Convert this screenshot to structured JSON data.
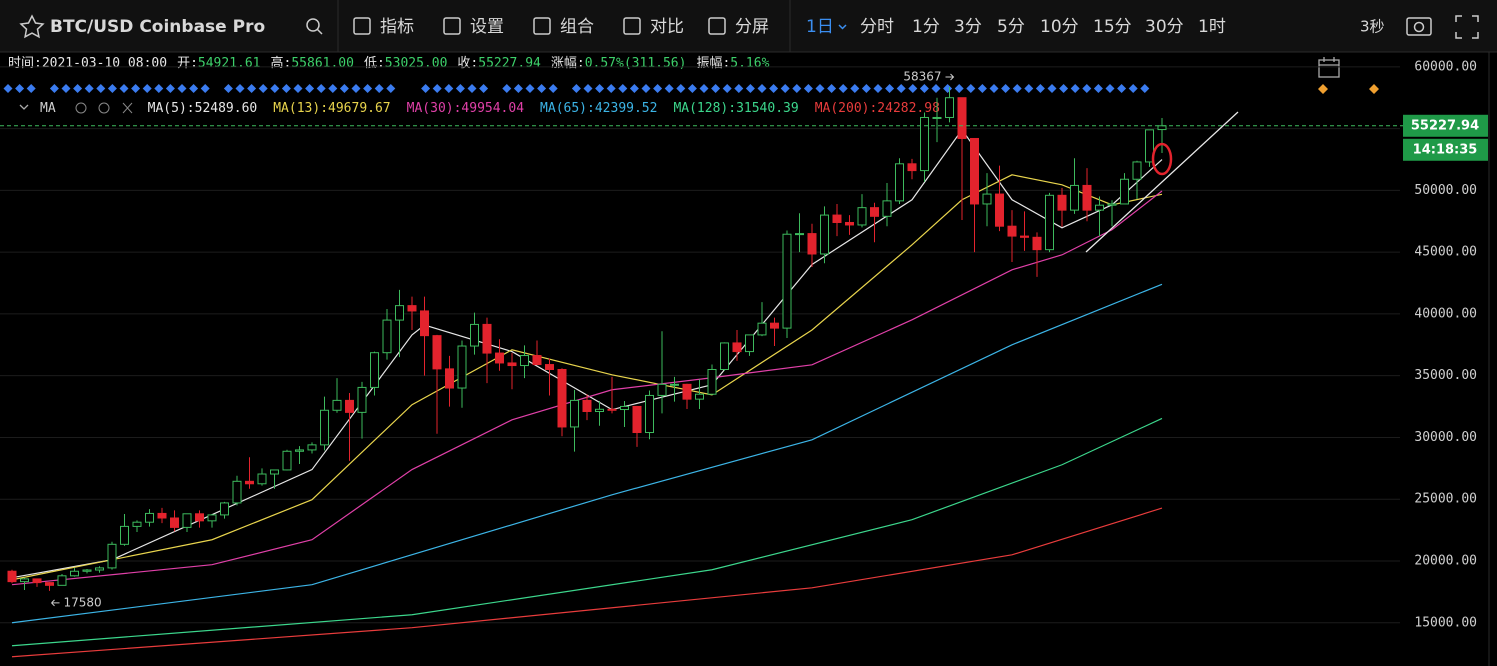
{
  "toolbar": {
    "title": "BTC/USD Coinbase Pro",
    "tools": [
      "指标",
      "设置",
      "组合",
      "对比",
      "分屏"
    ],
    "intervals": [
      "1日",
      "分时",
      "1分",
      "3分",
      "5分",
      "10分",
      "15分",
      "30分",
      "1时"
    ],
    "refresh": "3秒"
  },
  "info": [
    {
      "label": "时间:",
      "value": "2021-03-10 08:00"
    },
    {
      "label": "开:",
      "value": "54921.61"
    },
    {
      "label": "高:",
      "value": "55861.00"
    },
    {
      "label": "低:",
      "value": "53025.00"
    },
    {
      "label": "收:",
      "value": "55227.94"
    },
    {
      "label": "涨幅:",
      "value": "0.57%(311.56)"
    },
    {
      "label": "振幅:",
      "value": "5.16%"
    }
  ],
  "chart_data": {
    "type": "candlestick",
    "indicator": "MA",
    "up_color": "#3dba5d",
    "down_color": "#e3232d",
    "open": [
      19170,
      18330,
      18550,
      18250,
      18030,
      18800,
      19170,
      19270,
      19440,
      21350,
      22800,
      23140,
      23850,
      23480,
      22720,
      23820,
      23250,
      23730,
      24700,
      26450,
      26250,
      27040,
      27370,
      28880,
      28990,
      29400,
      32200,
      33000,
      32030,
      34050,
      36860,
      39500,
      40670,
      40240,
      38240,
      35550,
      34000,
      37400,
      39150,
      36830,
      36030,
      35820,
      36630,
      35900,
      35500,
      30850,
      33000,
      32100,
      32280,
      32260,
      32510,
      30400,
      33400,
      34300,
      34300,
      33100,
      33500,
      35500,
      37650,
      36950,
      38300,
      39250,
      38850,
      46450,
      46500,
      44850,
      48000,
      47400,
      47200,
      48600,
      47900,
      49150,
      52150,
      51600,
      55900,
      55900,
      57500,
      54200,
      48900,
      49700,
      47100,
      46300,
      46200,
      45200,
      49600,
      48400,
      50400,
      48400,
      48800,
      48900,
      50900,
      52300,
      54921.61
    ],
    "high": [
      19290,
      18640,
      18560,
      18290,
      18950,
      19420,
      19350,
      19570,
      21560,
      23800,
      23290,
      24200,
      24300,
      24100,
      23840,
      24100,
      23780,
      24790,
      26900,
      28400,
      27500,
      27400,
      29000,
      29300,
      29600,
      33300,
      34800,
      33600,
      34500,
      36950,
      40400,
      41950,
      41400,
      41400,
      38300,
      36600,
      37850,
      40100,
      39700,
      37950,
      36850,
      37450,
      37850,
      36400,
      35600,
      33850,
      33500,
      32950,
      34900,
      32950,
      32560,
      33800,
      38600,
      34900,
      34350,
      34700,
      35900,
      37700,
      38700,
      38300,
      40950,
      39700,
      46750,
      48150,
      47300,
      48700,
      48900,
      48000,
      49700,
      49000,
      50600,
      52600,
      52550,
      56300,
      57500,
      58367,
      57500,
      54200,
      51400,
      52000,
      48400,
      48300,
      46600,
      49800,
      50200,
      52600,
      51800,
      49500,
      49200,
      51400,
      52400,
      54900,
      55861
    ],
    "low": [
      18200,
      17650,
      17900,
      17580,
      18020,
      18730,
      19000,
      19050,
      19300,
      21230,
      22350,
      22780,
      23060,
      22400,
      22350,
      22700,
      22700,
      23430,
      24500,
      25850,
      26100,
      25850,
      27320,
      27850,
      28700,
      28950,
      32000,
      28100,
      29900,
      33400,
      36300,
      36500,
      38700,
      35000,
      30300,
      32500,
      32400,
      36700,
      34400,
      35400,
      33900,
      34800,
      35900,
      33400,
      30100,
      28850,
      31400,
      30950,
      31950,
      30850,
      29240,
      29850,
      31950,
      32900,
      32300,
      32300,
      33450,
      35400,
      36200,
      36600,
      38200,
      37400,
      38050,
      45000,
      43800,
      44100,
      46300,
      46400,
      47000,
      45800,
      47100,
      48900,
      50900,
      50700,
      53900,
      55500,
      47600,
      45000,
      47100,
      46700,
      44200,
      45100,
      43000,
      45000,
      47050,
      48100,
      47500,
      46300,
      47100,
      48900,
      49300,
      51900,
      53025
    ],
    "close": [
      18330,
      18550,
      18250,
      18030,
      18800,
      19170,
      19270,
      19440,
      21350,
      22800,
      23140,
      23850,
      23480,
      22720,
      23820,
      23250,
      23730,
      24700,
      26450,
      26250,
      27040,
      27370,
      28880,
      28990,
      29400,
      32200,
      33000,
      32030,
      34050,
      36860,
      39500,
      40670,
      40240,
      38240,
      35550,
      34000,
      37400,
      39150,
      36830,
      36030,
      35820,
      36630,
      35900,
      35500,
      30850,
      33000,
      32100,
      32280,
      32260,
      32510,
      30400,
      33400,
      34300,
      34300,
      33100,
      33500,
      35500,
      37650,
      36950,
      38300,
      39250,
      38850,
      46450,
      46500,
      44850,
      48000,
      47400,
      47200,
      48600,
      47900,
      49150,
      52150,
      51600,
      55900,
      55900,
      57500,
      54200,
      48900,
      49700,
      47100,
      46300,
      46200,
      45200,
      49600,
      48400,
      50400,
      48400,
      48800,
      48900,
      50900,
      52300,
      54900,
      55227.94
    ],
    "series": [
      {
        "name": "MA(5):52489.60",
        "color": "#e6e6e6",
        "x": [
          0,
          8,
          16,
          24,
          32,
          33,
          40,
          48,
          56,
          64,
          72,
          76,
          80,
          84,
          88,
          92
        ],
        "values": [
          18650,
          20100,
          23750,
          27400,
          38300,
          39100,
          36950,
          32250,
          34270,
          44000,
          49240,
          54900,
          49240,
          46970,
          48830,
          52490
        ]
      },
      {
        "name": "MA(13):49679.67",
        "color": "#e8d44d",
        "x": [
          0,
          16,
          24,
          32,
          40,
          48,
          56,
          64,
          72,
          76,
          80,
          84,
          88,
          92
        ],
        "values": [
          18480,
          21720,
          24960,
          32650,
          37100,
          35070,
          33450,
          38700,
          45590,
          49240,
          51260,
          50450,
          48830,
          49680
        ]
      },
      {
        "name": "MA(30):49954.04",
        "color": "#e040a8",
        "x": [
          0,
          16,
          24,
          32,
          40,
          48,
          56,
          64,
          72,
          80,
          84,
          88,
          92
        ],
        "values": [
          18080,
          19700,
          21720,
          27400,
          31430,
          33860,
          34830,
          35880,
          39520,
          43570,
          44780,
          46810,
          49950
        ]
      },
      {
        "name": "MA(65):42399.52",
        "color": "#3cb4e6",
        "x": [
          0,
          24,
          48,
          64,
          80,
          92
        ],
        "values": [
          15000,
          18080,
          25360,
          29810,
          37500,
          42400
        ]
      },
      {
        "name": "MA(128):31540.39",
        "color": "#3cd68c",
        "x": [
          0,
          32,
          56,
          72,
          84,
          92
        ],
        "values": [
          13140,
          15650,
          19290,
          23340,
          27790,
          31540
        ]
      },
      {
        "name": "MA(200):24282.98",
        "color": "#e83c3c",
        "x": [
          0,
          32,
          64,
          80,
          92
        ],
        "values": [
          12250,
          14600,
          17830,
          20500,
          24280
        ]
      }
    ],
    "high_label": "58367",
    "low_label": "17580",
    "last_price_label": "55227.94",
    "countdown": "14:18:35",
    "ylim": [
      11500,
      61200
    ],
    "yticks": [
      {
        "value": 15000,
        "label": "15000.00"
      },
      {
        "value": 20000,
        "label": "20000.00"
      },
      {
        "value": 25000,
        "label": "25000.00"
      },
      {
        "value": 30000,
        "label": "30000.00"
      },
      {
        "value": 35000,
        "label": "35000.00"
      },
      {
        "value": 40000,
        "label": "40000.00"
      },
      {
        "value": 45000,
        "label": "45000.00"
      },
      {
        "value": 50000,
        "label": "50000.00"
      },
      {
        "value": 55000,
        "label": "55000.00"
      },
      {
        "value": 60000,
        "label": "60000.00"
      }
    ],
    "grid": true
  }
}
